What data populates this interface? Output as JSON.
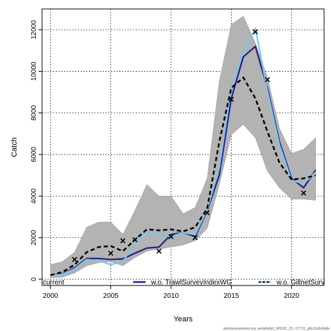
{
  "chart_data": {
    "type": "line",
    "xlabel": "Years",
    "ylabel": "Catch",
    "xlim": [
      1999.3,
      2022.7
    ],
    "ylim": [
      -300,
      13000
    ],
    "xticks": [
      2000,
      2005,
      2010,
      2015,
      2020
    ],
    "yticks": [
      0,
      2000,
      4000,
      6000,
      8000,
      10000,
      12000
    ],
    "grid": true,
    "x": [
      2000,
      2001,
      2002,
      2003,
      2004,
      2005,
      2006,
      2007,
      2008,
      2009,
      2010,
      2011,
      2012,
      2013,
      2014,
      2015,
      2016,
      2017,
      2018,
      2019,
      2020,
      2021,
      2022
    ],
    "band": {
      "upper": [
        700,
        850,
        1300,
        2500,
        2750,
        2750,
        2150,
        3300,
        4550,
        4000,
        4000,
        3150,
        3450,
        4850,
        9500,
        12250,
        12650,
        11350,
        9700,
        7250,
        6050,
        6250,
        6800
      ],
      "lower": [
        80,
        100,
        300,
        650,
        800,
        850,
        650,
        1050,
        1350,
        1450,
        1550,
        1650,
        1850,
        2450,
        4550,
        6950,
        7450,
        6800,
        5200,
        4400,
        3850,
        3850,
        3800
      ]
    },
    "series": [
      {
        "name": "current",
        "color": "#000000",
        "style": "dashed",
        "values": [
          200,
          350,
          700,
          1300,
          1550,
          1600,
          1350,
          1900,
          2400,
          2350,
          2400,
          2300,
          2500,
          3400,
          6600,
          9200,
          9700,
          8700,
          7100,
          5600,
          4800,
          4850,
          5000
        ]
      },
      {
        "name": "w.o. TrawlSurveyIndexWG",
        "color": "#2b1d85",
        "style": "solid",
        "values": [
          180,
          260,
          550,
          1000,
          1000,
          950,
          980,
          1250,
          1500,
          1550,
          2150,
          2250,
          2050,
          3300,
          5000,
          8700,
          10700,
          11200,
          9200,
          6600,
          4850,
          4400,
          5250
        ]
      },
      {
        "name": "w.o. GillnetSurveyIndex",
        "color": "#79c6ee",
        "style": "solid",
        "values": [
          170,
          240,
          500,
          950,
          900,
          700,
          850,
          1700,
          2300,
          2150,
          2050,
          2250,
          2150,
          3350,
          5350,
          9200,
          10950,
          12050,
          9050,
          6450,
          4750,
          4600,
          5150
        ]
      }
    ],
    "observations": {
      "marker": "×",
      "x": [
        2002,
        2005,
        2006,
        2007,
        2009,
        2010,
        2012,
        2013,
        2015,
        2017,
        2018,
        2021
      ],
      "y": [
        950,
        1250,
        1850,
        1900,
        1350,
        2050,
        2000,
        3200,
        8650,
        11900,
        9600,
        4150
      ]
    },
    "legend": {
      "placement": "bottom",
      "entries": [
        "current",
        "w.o. TrawlSurveyIndexWG",
        "w.o. GillnetSurveyIndex"
      ]
    },
    "footer": "stockassessment.org, sensitivity2_WGSC_23, r17721_gitcc2a0c6dde"
  }
}
